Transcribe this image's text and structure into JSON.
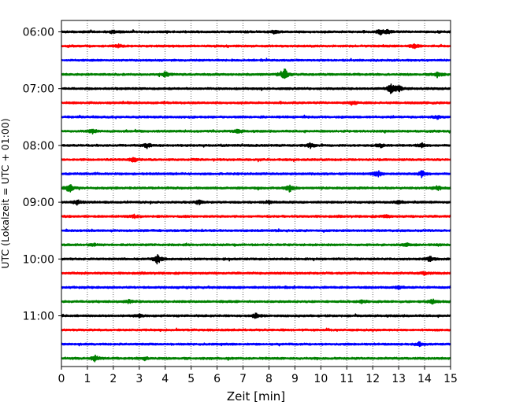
{
  "chart_data": {
    "type": "line",
    "xlabel": "Zeit  [min]",
    "ylabel": "UTC (Lokalzeit = UTC + 01:00)",
    "xlim": [
      0,
      15
    ],
    "x_ticks": [
      0,
      1,
      2,
      3,
      4,
      5,
      6,
      7,
      8,
      9,
      10,
      11,
      12,
      13,
      14,
      15
    ],
    "x_tick_labels": [
      "0",
      "1",
      "2",
      "3",
      "4",
      "5",
      "6",
      "7",
      "8",
      "9",
      "10",
      "11",
      "12",
      "13",
      "14",
      "15"
    ],
    "y_tick_labels": [
      {
        "trace_index": 0,
        "label": "06:00"
      },
      {
        "trace_index": 4,
        "label": "07:00"
      },
      {
        "trace_index": 8,
        "label": "08:00"
      },
      {
        "trace_index": 12,
        "label": "09:00"
      },
      {
        "trace_index": 16,
        "label": "10:00"
      },
      {
        "trace_index": 20,
        "label": "11:00"
      }
    ],
    "grid": "vertical dotted at each minute",
    "trace_minutes": 15,
    "trace_colors": [
      "#000000",
      "#ff0000",
      "#0000ff",
      "#008000"
    ],
    "series": [
      {
        "start": "06:00",
        "color": "#000000",
        "events": [
          {
            "x": 2.0,
            "amp": 2
          },
          {
            "x": 8.2,
            "amp": 2
          },
          {
            "x": 12.3,
            "amp": 3
          },
          {
            "x": 12.6,
            "amp": 2.5
          }
        ]
      },
      {
        "start": "06:15",
        "color": "#ff0000",
        "events": [
          {
            "x": 2.2,
            "amp": 2
          },
          {
            "x": 13.6,
            "amp": 3
          }
        ]
      },
      {
        "start": "06:30",
        "color": "#0000ff",
        "events": []
      },
      {
        "start": "06:45",
        "color": "#008000",
        "events": [
          {
            "x": 4.0,
            "amp": 3
          },
          {
            "x": 8.6,
            "amp": 8
          },
          {
            "x": 14.5,
            "amp": 4
          }
        ]
      },
      {
        "start": "07:00",
        "color": "#000000",
        "events": [
          {
            "x": 12.7,
            "amp": 6
          },
          {
            "x": 13.0,
            "amp": 4
          }
        ]
      },
      {
        "start": "07:15",
        "color": "#ff0000",
        "events": [
          {
            "x": 11.2,
            "amp": 2
          }
        ]
      },
      {
        "start": "07:30",
        "color": "#0000ff",
        "events": [
          {
            "x": 14.5,
            "amp": 2
          }
        ]
      },
      {
        "start": "07:45",
        "color": "#008000",
        "events": [
          {
            "x": 1.2,
            "amp": 2.5
          },
          {
            "x": 6.8,
            "amp": 2.5
          }
        ]
      },
      {
        "start": "08:00",
        "color": "#000000",
        "events": [
          {
            "x": 3.3,
            "amp": 3
          },
          {
            "x": 9.6,
            "amp": 3
          },
          {
            "x": 12.3,
            "amp": 2.5
          },
          {
            "x": 13.9,
            "amp": 2.5
          }
        ]
      },
      {
        "start": "08:15",
        "color": "#ff0000",
        "events": [
          {
            "x": 2.8,
            "amp": 3
          }
        ]
      },
      {
        "start": "08:30",
        "color": "#0000ff",
        "events": [
          {
            "x": 12.2,
            "amp": 4
          },
          {
            "x": 13.9,
            "amp": 4
          }
        ]
      },
      {
        "start": "08:45",
        "color": "#008000",
        "events": [
          {
            "x": 0.3,
            "amp": 6
          },
          {
            "x": 8.8,
            "amp": 5
          },
          {
            "x": 14.5,
            "amp": 2.5
          }
        ]
      },
      {
        "start": "09:00",
        "color": "#000000",
        "events": [
          {
            "x": 0.6,
            "amp": 3
          },
          {
            "x": 5.3,
            "amp": 2.5
          },
          {
            "x": 8.0,
            "amp": 2
          },
          {
            "x": 13.0,
            "amp": 2
          }
        ]
      },
      {
        "start": "09:15",
        "color": "#ff0000",
        "events": [
          {
            "x": 2.8,
            "amp": 2
          },
          {
            "x": 12.5,
            "amp": 2
          }
        ]
      },
      {
        "start": "09:30",
        "color": "#0000ff",
        "events": []
      },
      {
        "start": "09:45",
        "color": "#008000",
        "events": [
          {
            "x": 1.2,
            "amp": 2
          },
          {
            "x": 13.3,
            "amp": 2
          }
        ]
      },
      {
        "start": "10:00",
        "color": "#000000",
        "events": [
          {
            "x": 3.7,
            "amp": 6
          },
          {
            "x": 14.2,
            "amp": 3.5
          }
        ]
      },
      {
        "start": "10:15",
        "color": "#ff0000",
        "events": [
          {
            "x": 14.0,
            "amp": 2
          }
        ]
      },
      {
        "start": "10:30",
        "color": "#0000ff",
        "events": [
          {
            "x": 13.0,
            "amp": 2
          }
        ]
      },
      {
        "start": "10:45",
        "color": "#008000",
        "events": [
          {
            "x": 2.6,
            "amp": 2
          },
          {
            "x": 11.6,
            "amp": 2
          },
          {
            "x": 14.3,
            "amp": 3
          }
        ]
      },
      {
        "start": "11:00",
        "color": "#000000",
        "events": [
          {
            "x": 3.0,
            "amp": 2
          },
          {
            "x": 7.5,
            "amp": 3.5
          }
        ]
      },
      {
        "start": "11:15",
        "color": "#ff0000",
        "events": []
      },
      {
        "start": "11:30",
        "color": "#0000ff",
        "events": [
          {
            "x": 13.8,
            "amp": 2
          }
        ]
      },
      {
        "start": "11:45",
        "color": "#008000",
        "events": [
          {
            "x": 1.3,
            "amp": 4
          },
          {
            "x": 3.2,
            "amp": 2
          }
        ]
      }
    ]
  }
}
